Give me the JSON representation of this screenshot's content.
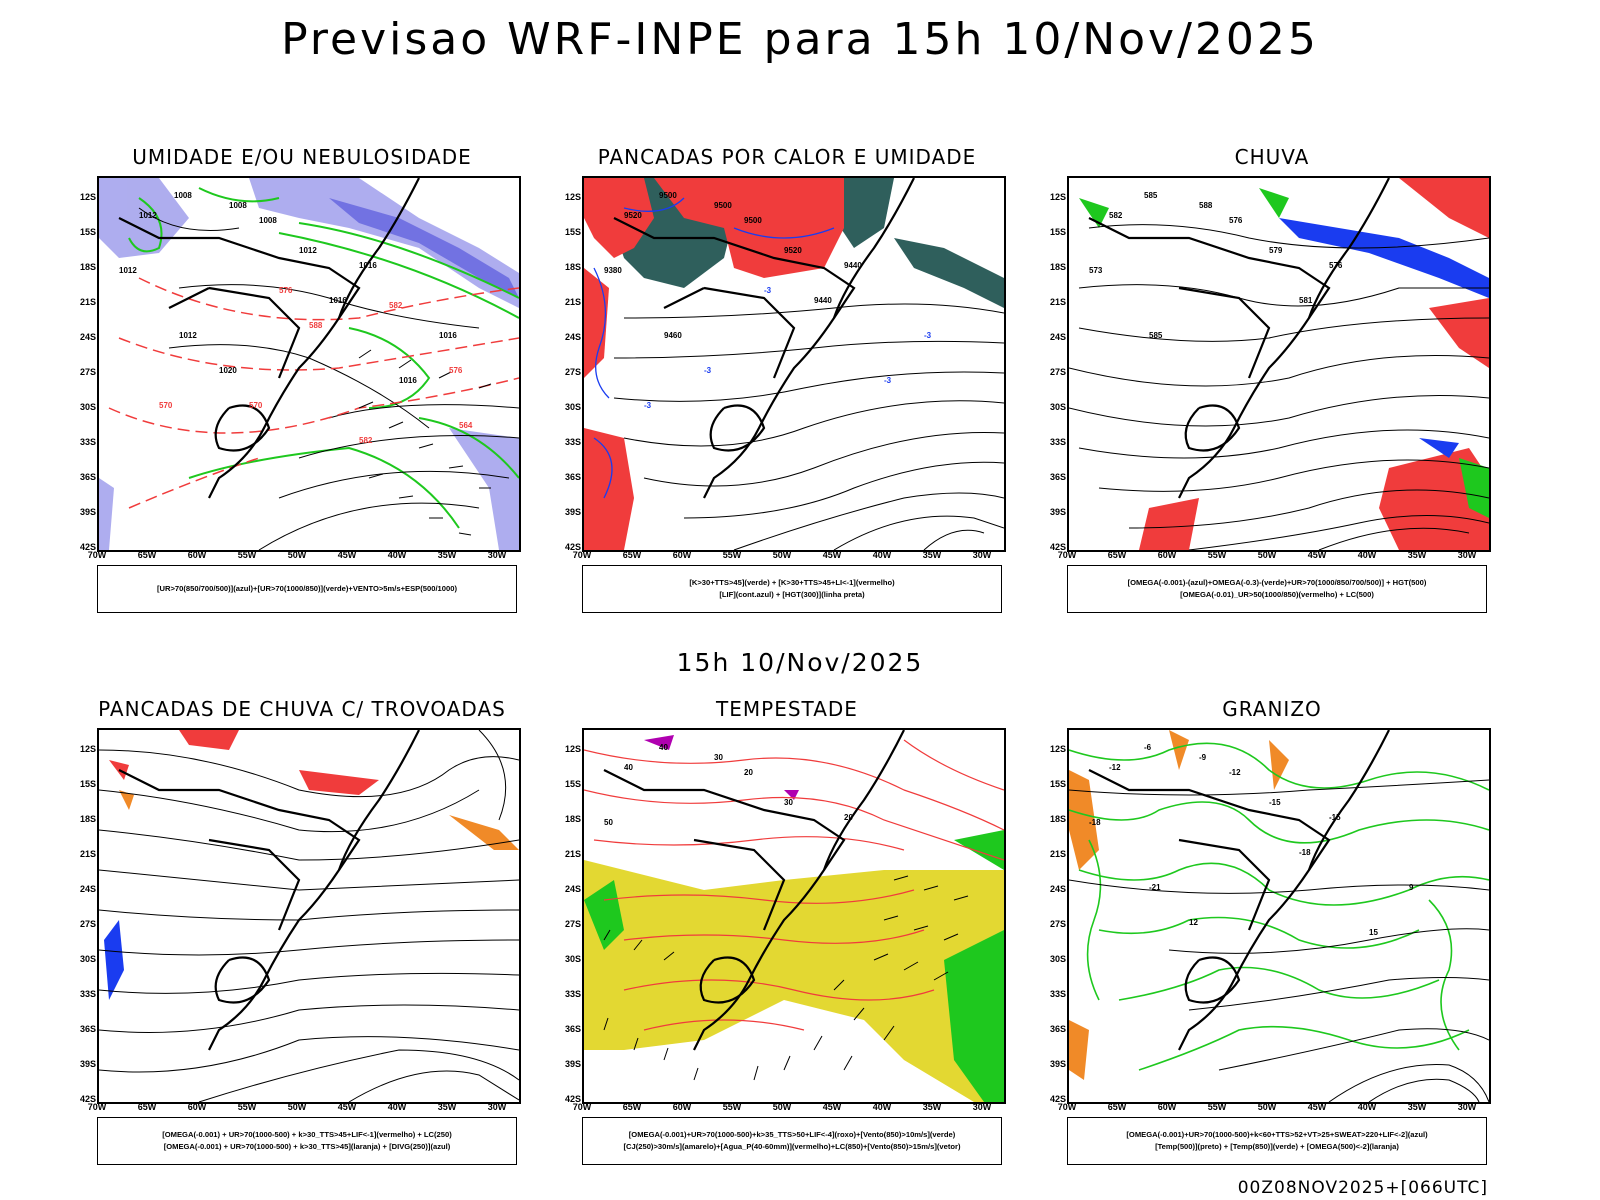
{
  "main_title": "Previsao WRF-INPE  para 15h 10/Nov/2025",
  "mid_title": "15h 10/Nov/2025",
  "footer": "00Z08NOV2025+[066UTC]",
  "lat_ticks": [
    "12S",
    "15S",
    "18S",
    "21S",
    "24S",
    "27S",
    "30S",
    "33S",
    "36S",
    "39S",
    "42S"
  ],
  "lon_ticks": [
    "70W",
    "65W",
    "60W",
    "55W",
    "50W",
    "45W",
    "40W",
    "35W",
    "30W"
  ],
  "panels": [
    {
      "title": "UMIDADE E/OU NEBULOSIDADE",
      "legend": [
        "[UR>70(850/700/500)](azul)+[UR>70(1000/850)](verde)+VENTO>5m/s+ESP(500/1000)"
      ],
      "labels": [
        "1008",
        "1008",
        "1008",
        "1012",
        "1012",
        "1016",
        "1012",
        "1016",
        "1012",
        "1016",
        "1020",
        "1016",
        "570",
        "576",
        "582",
        "588",
        "576",
        "570",
        "564",
        "582"
      ]
    },
    {
      "title": "PANCADAS POR CALOR E UMIDADE",
      "legend": [
        "[K>30+TTS>45](verde)  +  [K>30+TTS>45+LI<-1](vermelho)",
        "[LIF](cont.azul)  +  [HGT(300)](linha preta)"
      ],
      "labels": [
        "9500",
        "9500",
        "9500",
        "9520",
        "9520",
        "9440",
        "9380",
        "9440",
        "9460",
        "-3",
        "-3",
        "-3",
        "-3",
        "-3"
      ]
    },
    {
      "title": "CHUVA",
      "legend": [
        "[OMEGA(-0.001)-(azul)+OMEGA(-0.3)-(verde)+UR>70(1000/850/700/500)]  +  HGT(500)",
        "[OMEGA(-0.01)_UR>50(1000/850)(vermelho)  +  LC(500)"
      ],
      "labels": [
        "585",
        "588",
        "576",
        "582",
        "579",
        "576",
        "573",
        "581",
        "585"
      ]
    },
    {
      "title": "PANCADAS DE CHUVA C/ TROVOADAS",
      "legend": [
        "[OMEGA(-0.001)  +  UR>70(1000-500)  +  k>30_TTS>45+LIF<-1](vermelho)  +  LC(250)",
        "[OMEGA(-0.001)  +  UR>70(1000-500)  +  k>30_TTS>45](laranja)  +  [DIVG(250)](azul)"
      ],
      "labels": []
    },
    {
      "title": "TEMPESTADE",
      "legend": [
        "[OMEGA(-0.001)+UR>70(1000-500)+k>35_TTS>50+LIF<-4](roxo)+[Vento(850)>10m/s](verde)",
        "[CJ(250)>30m/s](amarelo)+[Agua_P(40-60mm)](vermelho)+LC(850)+[Vento(850)>15m/s](vetor)"
      ],
      "labels": [
        "40",
        "30",
        "20",
        "40",
        "30",
        "20",
        "50"
      ]
    },
    {
      "title": "GRANIZO",
      "legend": [
        "[OMEGA(-0.001)+UR>70(1000-500)+k<60+TTS>52+VT>25+SWEAT>220+LIF<-2](azul)",
        "[Temp(500)](preto)  +  [Temp(850)](verde)  +  [OMEGA(500)<-2](laranja)"
      ],
      "labels": [
        "-6",
        "-9",
        "-12",
        "-12",
        "-15",
        "-15",
        "-18",
        "-18",
        "-21",
        "9",
        "12",
        "15"
      ]
    }
  ],
  "colors": {
    "humid_blue": "#aaa9ee",
    "humid_blue_dark": "#6b6be0",
    "green": "#1ec81e",
    "red": "#f03c3c",
    "teal": "#2f5f5c",
    "yellow": "#e3d832",
    "orange": "#f08a28",
    "purple": "#b000b0",
    "blue": "#1a3cf0"
  }
}
